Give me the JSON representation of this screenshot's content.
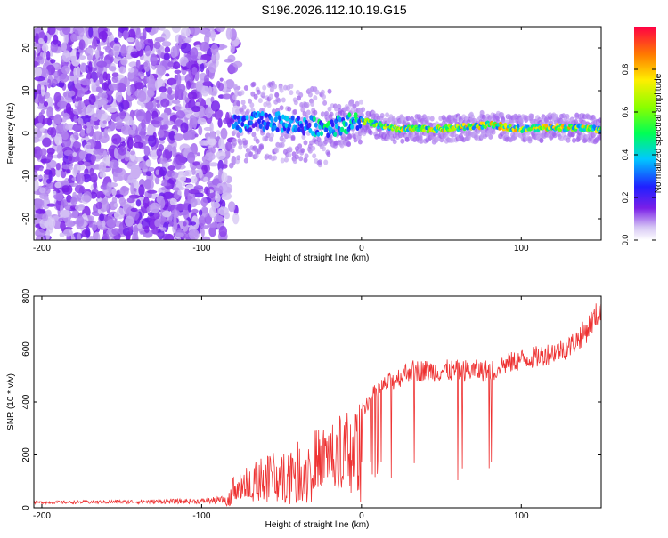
{
  "title": "S196.2026.112.10.19.G15",
  "spectrogram": {
    "xlabel": "Height of straight line (km)",
    "ylabel": "Frequency (Hz)",
    "xlim": [
      -205,
      150
    ],
    "ylim": [
      -25,
      25
    ],
    "xticks": [
      -200,
      -100,
      0,
      100
    ],
    "yticks": [
      -20,
      -10,
      0,
      10,
      20
    ],
    "colorbar": {
      "label": "Normalized spectral amplitude",
      "range": [
        0,
        1
      ],
      "ticks": [
        "0.0",
        "0.2",
        "0.4",
        "0.6",
        "0.8"
      ],
      "tick_values": [
        0,
        0.2,
        0.4,
        0.6,
        0.8
      ]
    }
  },
  "chart_data": [
    {
      "type": "heatmap",
      "title": "S196.2026.112.10.19.G15",
      "xlabel": "Height of straight line (km)",
      "ylabel": "Frequency (Hz)",
      "xlim": [
        -205,
        150
      ],
      "ylim": [
        -25,
        25
      ],
      "description_points": {
        "noise_region_x": [
          -205,
          -80
        ],
        "ridge_x": [
          -80,
          150
        ],
        "ridge_frequency": [
          [
            -80,
            2
          ],
          [
            -60,
            3
          ],
          [
            -40,
            2
          ],
          [
            -20,
            1.5
          ],
          [
            0,
            3
          ],
          [
            20,
            1
          ],
          [
            50,
            1
          ],
          [
            80,
            2
          ],
          [
            100,
            1
          ],
          [
            120,
            1.5
          ],
          [
            150,
            1
          ]
        ]
      }
    },
    {
      "type": "line",
      "xlabel": "Height of straight line (km)",
      "ylabel": "SNR (10 * v/v)",
      "xlim": [
        -205,
        150
      ],
      "ylim": [
        0,
        800
      ],
      "xticks": [
        -200,
        -100,
        0,
        100
      ],
      "yticks": [
        0,
        200,
        400,
        600,
        800
      ],
      "series": [
        {
          "name": "SNR",
          "color": "#ee3333",
          "envelope_x": [
            -205,
            -150,
            -100,
            -85,
            -80,
            -60,
            -40,
            -20,
            0,
            10,
            20,
            30,
            40,
            50,
            60,
            70,
            80,
            90,
            100,
            110,
            120,
            130,
            140,
            150
          ],
          "envelope_y": [
            20,
            25,
            30,
            40,
            120,
            200,
            250,
            330,
            400,
            480,
            520,
            560,
            560,
            560,
            560,
            560,
            560,
            570,
            590,
            600,
            620,
            640,
            700,
            790
          ]
        }
      ]
    }
  ],
  "snr": {
    "xlabel": "Height of straight line (km)",
    "ylabel": "SNR (10 * v/v)",
    "xticks": [
      -200,
      -100,
      0,
      100
    ],
    "yticks": [
      0,
      200,
      400,
      600,
      800
    ]
  }
}
